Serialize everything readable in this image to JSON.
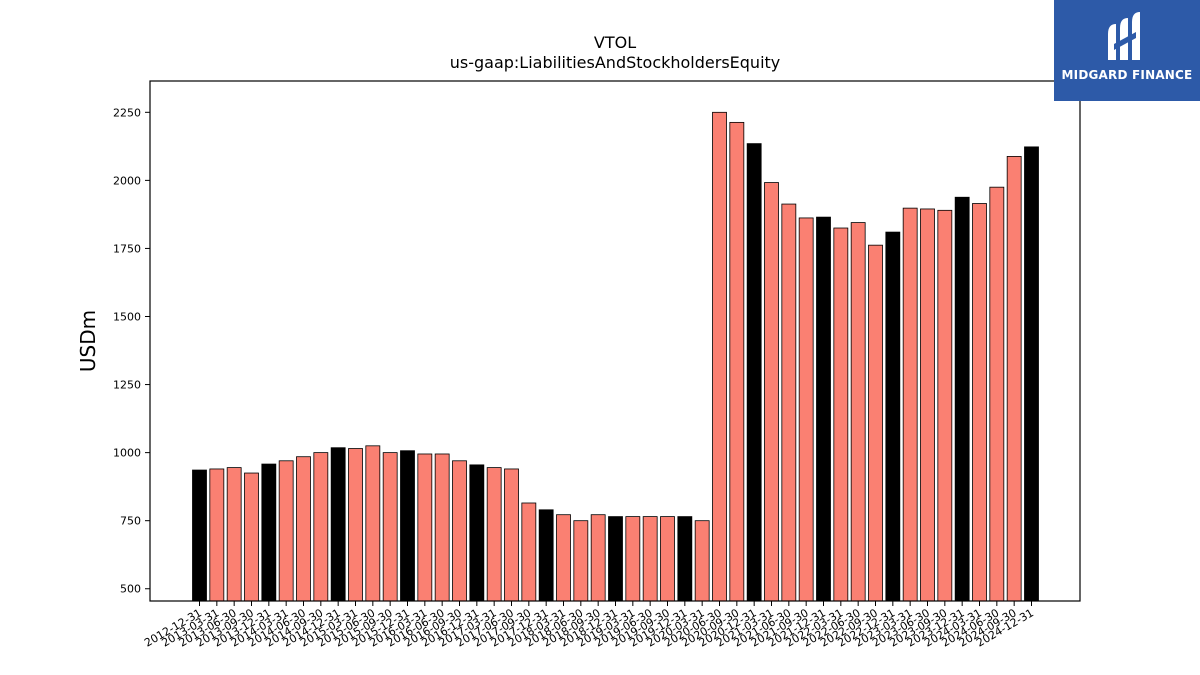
{
  "chart_data": {
    "type": "bar",
    "title": "VTOL",
    "subtitle": "us-gaap:LiabilitiesAndStockholdersEquity",
    "xlabel": "",
    "ylabel": "USDm",
    "ylim": [
      455,
      2365
    ],
    "yticks": [
      500,
      750,
      1000,
      1250,
      1500,
      1750,
      2000,
      2250
    ],
    "grid": false,
    "legend": "none",
    "colors": {
      "quarter": "#fa8072",
      "year_end": "#000000",
      "edge": "#000000"
    },
    "categories": [
      "2012-12-31",
      "2013-03-31",
      "2013-06-30",
      "2013-09-30",
      "2013-12-31",
      "2014-03-31",
      "2014-06-30",
      "2014-09-30",
      "2014-12-31",
      "2015-03-31",
      "2015-06-30",
      "2015-09-30",
      "2015-12-31",
      "2016-03-31",
      "2016-06-30",
      "2016-09-30",
      "2016-12-31",
      "2017-03-31",
      "2017-06-30",
      "2017-09-30",
      "2017-12-31",
      "2018-03-31",
      "2018-06-30",
      "2018-09-30",
      "2018-12-31",
      "2019-03-31",
      "2019-06-30",
      "2019-09-30",
      "2019-12-31",
      "2020-03-31",
      "2020-06-30",
      "2020-09-30",
      "2020-12-31",
      "2021-03-31",
      "2021-06-30",
      "2021-09-30",
      "2021-12-31",
      "2022-03-31",
      "2022-06-30",
      "2022-09-30",
      "2022-12-31",
      "2023-03-31",
      "2023-06-30",
      "2023-09-30",
      "2023-12-31",
      "2024-03-31",
      "2024-06-30",
      "2024-09-30",
      "2024-12-31"
    ],
    "values": [
      936,
      940,
      945,
      925,
      958,
      970,
      985,
      1000,
      1018,
      1015,
      1025,
      1000,
      1007,
      995,
      995,
      970,
      955,
      945,
      940,
      815,
      790,
      772,
      750,
      772,
      765,
      765,
      765,
      765,
      765,
      750,
      2250,
      2213,
      2135,
      1992,
      1913,
      1862,
      1865,
      1825,
      1845,
      1762,
      1810,
      1898,
      1895,
      1890,
      1938,
      1915,
      1975,
      2088,
      2123
    ],
    "year_end": [
      true,
      false,
      false,
      false,
      true,
      false,
      false,
      false,
      true,
      false,
      false,
      false,
      true,
      false,
      false,
      false,
      true,
      false,
      false,
      false,
      true,
      false,
      false,
      false,
      true,
      false,
      false,
      false,
      true,
      false,
      false,
      false,
      true,
      false,
      false,
      false,
      true,
      false,
      false,
      false,
      true,
      false,
      false,
      false,
      true,
      false,
      false,
      false,
      true
    ]
  },
  "logo": {
    "text": "MIDGARD FINANCE",
    "background": "#2d5aa8"
  }
}
